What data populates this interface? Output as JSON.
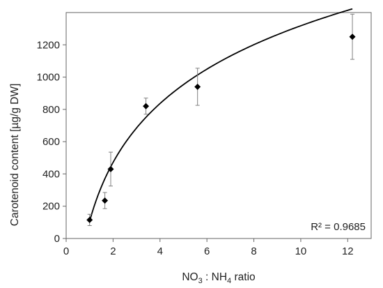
{
  "chart_data": {
    "type": "scatter",
    "xlabel": {
      "pre": "NO",
      "sub1": "3",
      "mid": " : NH",
      "sub2": "4",
      "post": " ratio"
    },
    "ylabel": "Carotenoid content [µg/g DW]",
    "xlim": [
      0,
      13
    ],
    "ylim": [
      0,
      1400
    ],
    "x_ticks": [
      0,
      2,
      4,
      6,
      8,
      10,
      12
    ],
    "y_ticks": [
      0,
      200,
      400,
      600,
      800,
      1000,
      1200
    ],
    "grid": false,
    "legend": "none",
    "points": [
      {
        "x": 1.0,
        "y": 115,
        "err": 35
      },
      {
        "x": 1.65,
        "y": 235,
        "err": 50
      },
      {
        "x": 1.9,
        "y": 430,
        "err": 105
      },
      {
        "x": 3.4,
        "y": 820,
        "err": 50
      },
      {
        "x": 5.6,
        "y": 940,
        "err": 115
      },
      {
        "x": 12.2,
        "y": 1250,
        "err": 140
      }
    ],
    "trendline": {
      "type": "logarithmic",
      "a": 107,
      "b": 526,
      "x_range": [
        1.0,
        12.2
      ]
    },
    "annotation": "R² = 0.9685",
    "marker_color": "#000000"
  }
}
